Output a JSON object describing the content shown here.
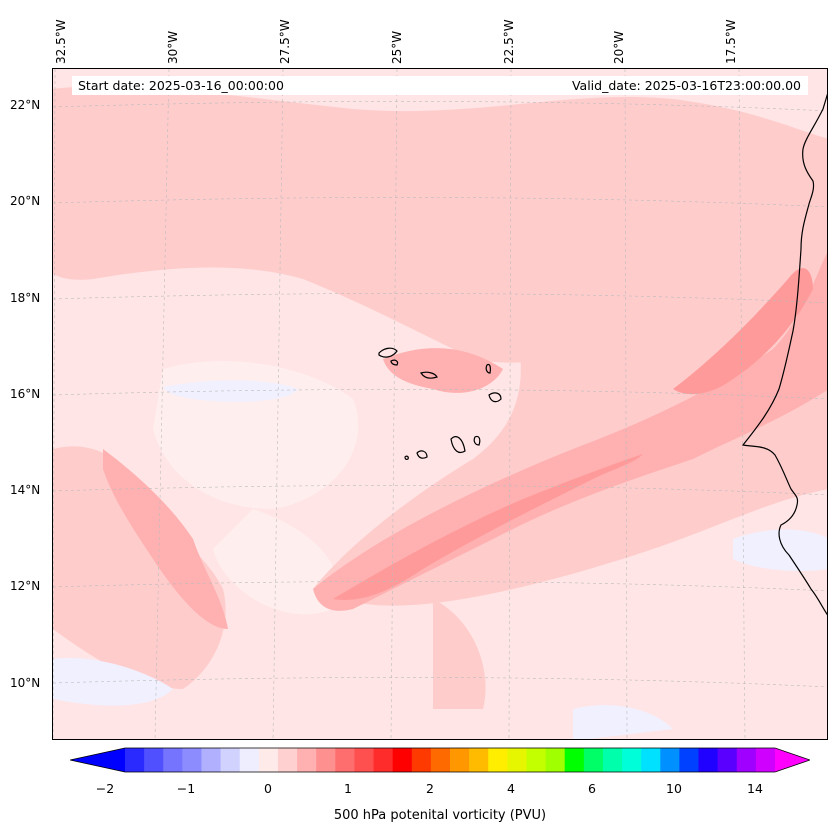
{
  "map": {
    "start_date": "Start date: 2025-03-16_00:00:00",
    "valid_date": "Valid_date: 2025-03-16T23:00:00.00",
    "lon_labels": [
      "32.5°W",
      "30°W",
      "27.5°W",
      "25°W",
      "22.5°W",
      "20°W",
      "17.5°W"
    ],
    "lat_labels": [
      "22°N",
      "20°N",
      "18°N",
      "16°N",
      "14°N",
      "12°N",
      "10°N"
    ],
    "colors": {
      "background_low": "#ffe5e5",
      "very_low": "#ffeeee",
      "low": "#ffcccc",
      "mid": "#ffb0b0",
      "high": "#ff9a9a",
      "negative": "#f0f0ff",
      "coast": "#000000"
    }
  },
  "colorbar": {
    "label": "500 hPa potenital vorticity (PVU)",
    "tick_labels": [
      "−2",
      "−1",
      "0",
      "1",
      "2",
      "4",
      "6",
      "10",
      "14"
    ],
    "colors": [
      "#0000ff",
      "#2a2aff",
      "#5050ff",
      "#7474ff",
      "#8c8cff",
      "#b0b0ff",
      "#d2d2ff",
      "#eeeeff",
      "#ffeaea",
      "#ffd0d0",
      "#ffb0b0",
      "#ff9090",
      "#ff6e6e",
      "#ff5050",
      "#ff2c2c",
      "#ff0000",
      "#ff3a00",
      "#ff6a00",
      "#ff9800",
      "#ffbb00",
      "#ffee00",
      "#e6f500",
      "#c4ff00",
      "#a0ff00",
      "#00ff00",
      "#00ff66",
      "#00ffaa",
      "#00ffd8",
      "#00e0ff",
      "#0090ff",
      "#0040ff",
      "#2000ff",
      "#5a00ff",
      "#a000ff",
      "#d000ff",
      "#ff00ff"
    ]
  }
}
